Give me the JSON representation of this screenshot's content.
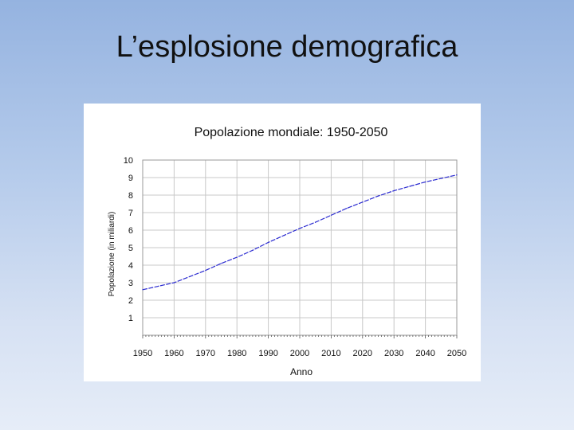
{
  "slide": {
    "title": "L’esplosione demografica"
  },
  "chart_data": {
    "type": "line",
    "title": "Popolazione mondiale: 1950-2050",
    "xlabel": "Anno",
    "ylabel": "Popolazione (in miliardi)",
    "x_ticks": [
      1950,
      1960,
      1970,
      1980,
      1990,
      2000,
      2010,
      2020,
      2030,
      2040,
      2050
    ],
    "y_ticks": [
      1,
      2,
      3,
      4,
      5,
      6,
      7,
      8,
      9,
      10
    ],
    "xlim": [
      1950,
      2050
    ],
    "ylim": [
      0,
      10
    ],
    "grid": true,
    "colors": {
      "line": "#2b2bd0",
      "grid": "#c8c8c8"
    },
    "series": [
      {
        "x": [
          1950,
          1955,
          1960,
          1965,
          1970,
          1975,
          1980,
          1985,
          1990,
          1995,
          2000,
          2005,
          2010,
          2015,
          2020,
          2025,
          2030,
          2035,
          2040,
          2045,
          2050
        ],
        "y": [
          2.6,
          2.8,
          3.0,
          3.35,
          3.7,
          4.1,
          4.45,
          4.85,
          5.3,
          5.7,
          6.1,
          6.45,
          6.85,
          7.25,
          7.6,
          7.95,
          8.25,
          8.5,
          8.75,
          8.95,
          9.15
        ]
      }
    ]
  }
}
